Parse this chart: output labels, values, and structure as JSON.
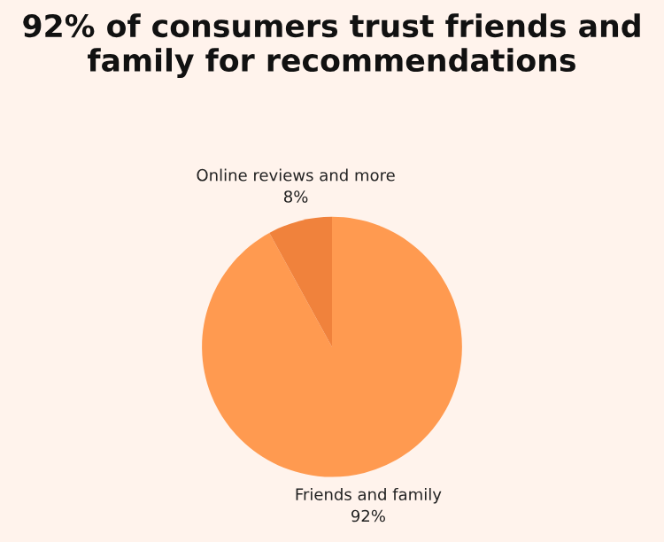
{
  "chart_data": {
    "type": "pie",
    "title": "92% of consumers trust friends and family for recommendations",
    "categories": [
      "Friends and family",
      "Online reviews and more"
    ],
    "values": [
      92,
      8
    ],
    "colors": [
      "#ff9a50",
      "#f0823c"
    ],
    "value_labels": [
      "92%",
      "8%"
    ],
    "legend": false
  }
}
